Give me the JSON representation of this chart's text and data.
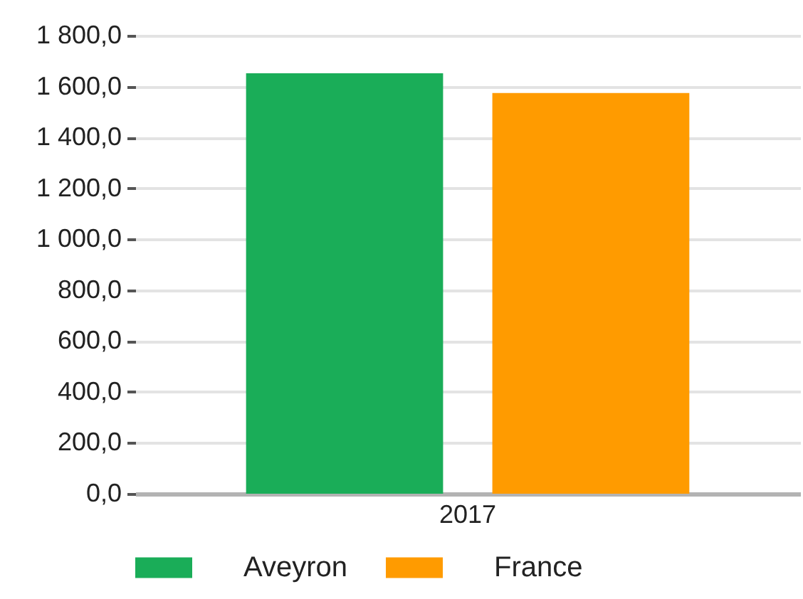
{
  "chart_data": {
    "type": "bar",
    "categories": [
      "2017"
    ],
    "series": [
      {
        "name": "Aveyron",
        "color": "#1aad58",
        "values": [
          1652
        ]
      },
      {
        "name": "France",
        "color": "#ff9b00",
        "values": [
          1574
        ]
      }
    ],
    "ylim": [
      0,
      1800
    ],
    "yticks": [
      {
        "value": 0,
        "label": "0,0"
      },
      {
        "value": 200,
        "label": "200,0"
      },
      {
        "value": 400,
        "label": "400,0"
      },
      {
        "value": 600,
        "label": "600,0"
      },
      {
        "value": 800,
        "label": "800,0"
      },
      {
        "value": 1000,
        "label": "1 000,0"
      },
      {
        "value": 1200,
        "label": "1 200,0"
      },
      {
        "value": 1400,
        "label": "1 400,0"
      },
      {
        "value": 1600,
        "label": "1 600,0"
      },
      {
        "value": 1800,
        "label": "1 800,0"
      }
    ],
    "grid": "y",
    "legend": "bottom"
  }
}
